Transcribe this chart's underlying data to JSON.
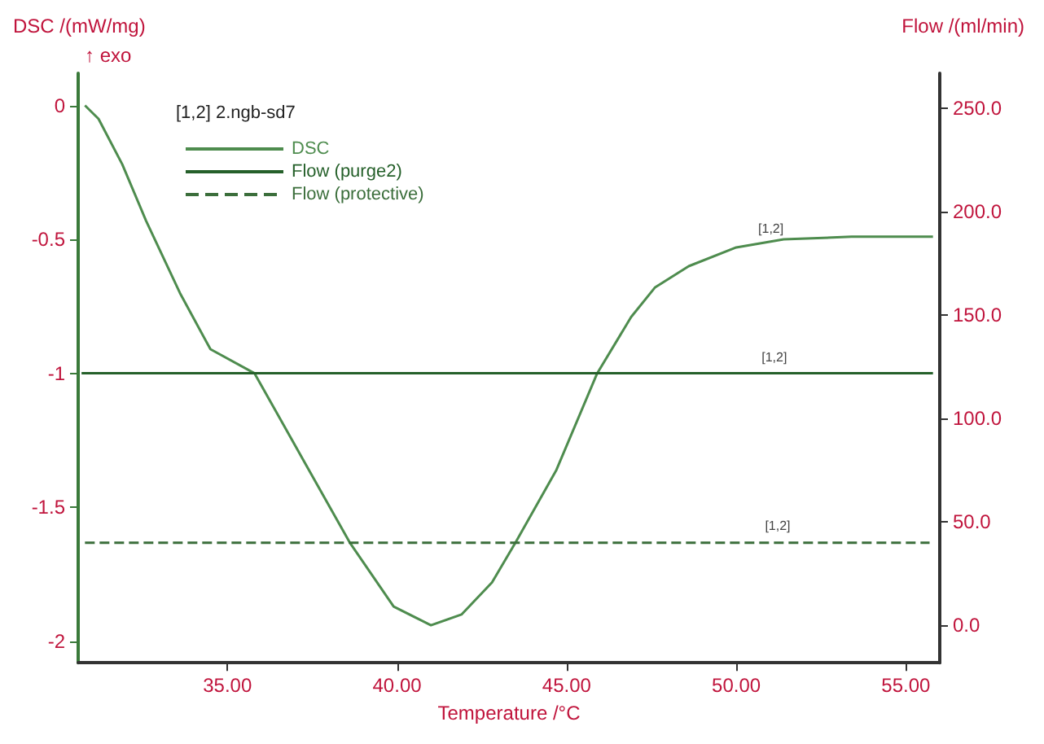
{
  "chart_data": {
    "type": "line",
    "xlabel": "Temperature /°C",
    "ylabel": "DSC /(mW/mg)",
    "y2label": "Flow /(ml/min)",
    "legend_title": "[1,2] 2.ngb-sd7",
    "annotations": [
      "↑ exo",
      {
        "text": "[1,2]",
        "x": 50.6,
        "y": -0.52
      },
      {
        "text": "[1,2]",
        "x": 50.7,
        "y": -1.0
      },
      {
        "text": "[1,2]",
        "x": 50.8,
        "y": -1.63
      }
    ],
    "x": [
      30.8,
      31.2,
      31.9,
      32.6,
      33.6,
      34.5,
      35.8,
      37.4,
      38.6,
      39.9,
      41.0,
      41.9,
      42.8,
      43.5,
      44.7,
      45.9,
      46.9,
      47.6,
      48.6,
      50.0,
      51.4,
      53.4,
      55.8
    ],
    "series": [
      {
        "name": "DSC",
        "color": "#4e8c4e",
        "values": [
          0.0,
          -0.05,
          -0.22,
          -0.43,
          -0.7,
          -0.91,
          -1.0,
          -1.36,
          -1.63,
          -1.87,
          -1.94,
          -1.9,
          -1.78,
          -1.63,
          -1.36,
          -1.0,
          -0.79,
          -0.68,
          -0.6,
          -0.53,
          -0.5,
          -0.49,
          -0.49
        ]
      },
      {
        "name": "Flow (purge2)",
        "color": "#25602a",
        "axis": "y2",
        "x": [
          30.7,
          55.8
        ],
        "values": [
          122,
          122
        ],
        "line_style": "solid"
      },
      {
        "name": "Flow (protective)",
        "color": "#3b6e3b",
        "axis": "y2",
        "x": [
          30.8,
          55.7
        ],
        "values": [
          40,
          40
        ],
        "line_style": "dashed"
      }
    ],
    "xlim": [
      30.6,
      56.0
    ],
    "ylim": [
      -2.08,
      0.12
    ],
    "y2lim": [
      -18,
      267
    ],
    "xticks": [
      {
        "value": 35,
        "label": "35.00"
      },
      {
        "value": 40,
        "label": "40.00"
      },
      {
        "value": 45,
        "label": "45.00"
      },
      {
        "value": 50,
        "label": "50.00"
      },
      {
        "value": 55,
        "label": "55.00"
      }
    ],
    "yticks": [
      0,
      -0.5,
      -1,
      -1.5,
      -2
    ],
    "y2ticks": [
      {
        "value": 0,
        "label": "0.0"
      },
      {
        "value": 50,
        "label": "50.0"
      },
      {
        "value": 100,
        "label": "100.0"
      },
      {
        "value": 150,
        "label": "150.0"
      },
      {
        "value": 200,
        "label": "200.0"
      },
      {
        "value": 250,
        "label": "250.0"
      }
    ],
    "grid": false,
    "legend": "top left",
    "marker": "none"
  }
}
